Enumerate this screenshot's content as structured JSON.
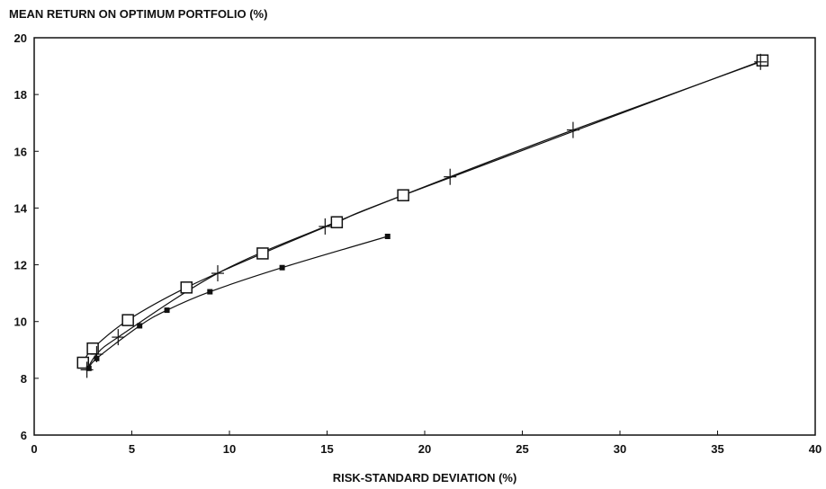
{
  "chart_data": {
    "type": "line",
    "title": "MEAN RETURN ON OPTIMUM PORTFOLIO (%)",
    "xlabel": "RISK-STANDARD DEVIATION (%)",
    "ylabel": "",
    "xlim": [
      0,
      40
    ],
    "ylim": [
      6,
      20
    ],
    "xticks": [
      "0",
      "5",
      "10",
      "15",
      "20",
      "25",
      "30",
      "35",
      "40"
    ],
    "yticks": [
      "6",
      "8",
      "10",
      "12",
      "14",
      "16",
      "18",
      "20"
    ],
    "grid": false,
    "legend": "none",
    "series": [
      {
        "marker": "open-square",
        "points": [
          [
            2.5,
            8.55
          ],
          [
            3.0,
            9.05
          ],
          [
            4.8,
            10.05
          ],
          [
            7.8,
            11.2
          ],
          [
            11.7,
            12.4
          ],
          [
            15.5,
            13.5
          ],
          [
            18.9,
            14.45
          ],
          [
            37.3,
            19.2
          ]
        ]
      },
      {
        "marker": "plus",
        "points": [
          [
            2.7,
            8.3
          ],
          [
            3.2,
            8.85
          ],
          [
            4.3,
            9.45
          ],
          [
            9.4,
            11.7
          ],
          [
            14.9,
            13.35
          ],
          [
            21.3,
            15.1
          ],
          [
            27.6,
            16.75
          ],
          [
            37.2,
            19.15
          ]
        ]
      },
      {
        "marker": "filled-square",
        "points": [
          [
            2.8,
            8.35
          ],
          [
            3.2,
            8.7
          ],
          [
            5.4,
            9.85
          ],
          [
            6.8,
            10.4
          ],
          [
            9.0,
            11.05
          ],
          [
            12.7,
            11.9
          ],
          [
            18.1,
            13.0
          ]
        ]
      }
    ]
  }
}
